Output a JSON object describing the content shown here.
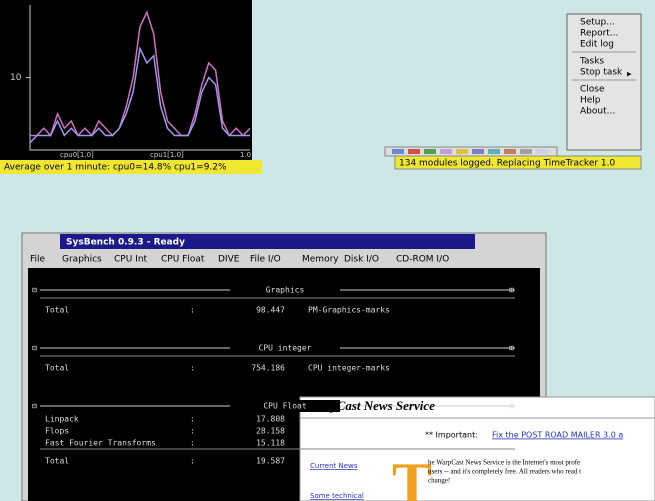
{
  "cpu_monitor": {
    "graph": {
      "ylim": [
        0,
        20
      ],
      "yticks": [
        10
      ],
      "series": [
        {
          "color": "#d070c0",
          "values": [
            2,
            2,
            3,
            2,
            5,
            3,
            4,
            2,
            3,
            2,
            4,
            3,
            2,
            3,
            6,
            10,
            17,
            19,
            16,
            8,
            4,
            3,
            2,
            2,
            5,
            9,
            12,
            11,
            4,
            2,
            3,
            2,
            3
          ]
        },
        {
          "color": "#9a9af0",
          "values": [
            1,
            2,
            2,
            2,
            4,
            2,
            3,
            2,
            2,
            2,
            3,
            2,
            2,
            3,
            5,
            8,
            14,
            12,
            13,
            6,
            3,
            2,
            2,
            2,
            4,
            8,
            10,
            9,
            3,
            2,
            2,
            2,
            2
          ]
        }
      ],
      "x_labels": [
        "cpu0[1.0]",
        "cpu1[1.0]",
        "1.0"
      ]
    },
    "status": "Average over 1 minute: cpu0=14.8% cpu1=9.2%"
  },
  "popup_menu": {
    "groups": [
      [
        "Setup...",
        "Report...",
        "Edit log"
      ],
      [
        "Tasks",
        "Stop task"
      ],
      [
        "Close",
        "Help",
        "About..."
      ]
    ]
  },
  "tooltip": "134 modules logged. Replacing TimeTracker 1.0",
  "sysbench": {
    "title": "SysBench 0.9.3 - Ready",
    "menu": [
      "File",
      "Graphics",
      "CPU Int",
      "CPU Float",
      "DIVE",
      "File I/O",
      "Memory",
      "Disk I/O",
      "CD-ROM I/O"
    ],
    "sections": [
      {
        "name": "Graphics",
        "rows": [
          {
            "label": "Total",
            "value": 98.447,
            "unit": "PM-Graphics-marks"
          }
        ]
      },
      {
        "name": "CPU integer",
        "rows": [
          {
            "label": "Total",
            "value": 754.186,
            "unit": "CPU integer-marks"
          }
        ]
      },
      {
        "name": "CPU Float",
        "rows": [
          {
            "label": "Linpack",
            "value": 17.808
          },
          {
            "label": "Flops",
            "value": 28.158
          },
          {
            "label": "Fast Fourier Transforms",
            "value": 15.118
          },
          {
            "label": "Total",
            "value": 19.587
          }
        ]
      }
    ]
  },
  "warpcast": {
    "title": "WarpCast News Service",
    "notice_label": "** Important:",
    "notice_link": "Fix the POST ROAD MAILER 3.0 a",
    "nav": [
      "Current News",
      "Some technical"
    ],
    "body": [
      "he WarpCast News Service is the Internet's most profe",
      "users -- and it's completely free. All readers who read t",
      "change!"
    ]
  }
}
